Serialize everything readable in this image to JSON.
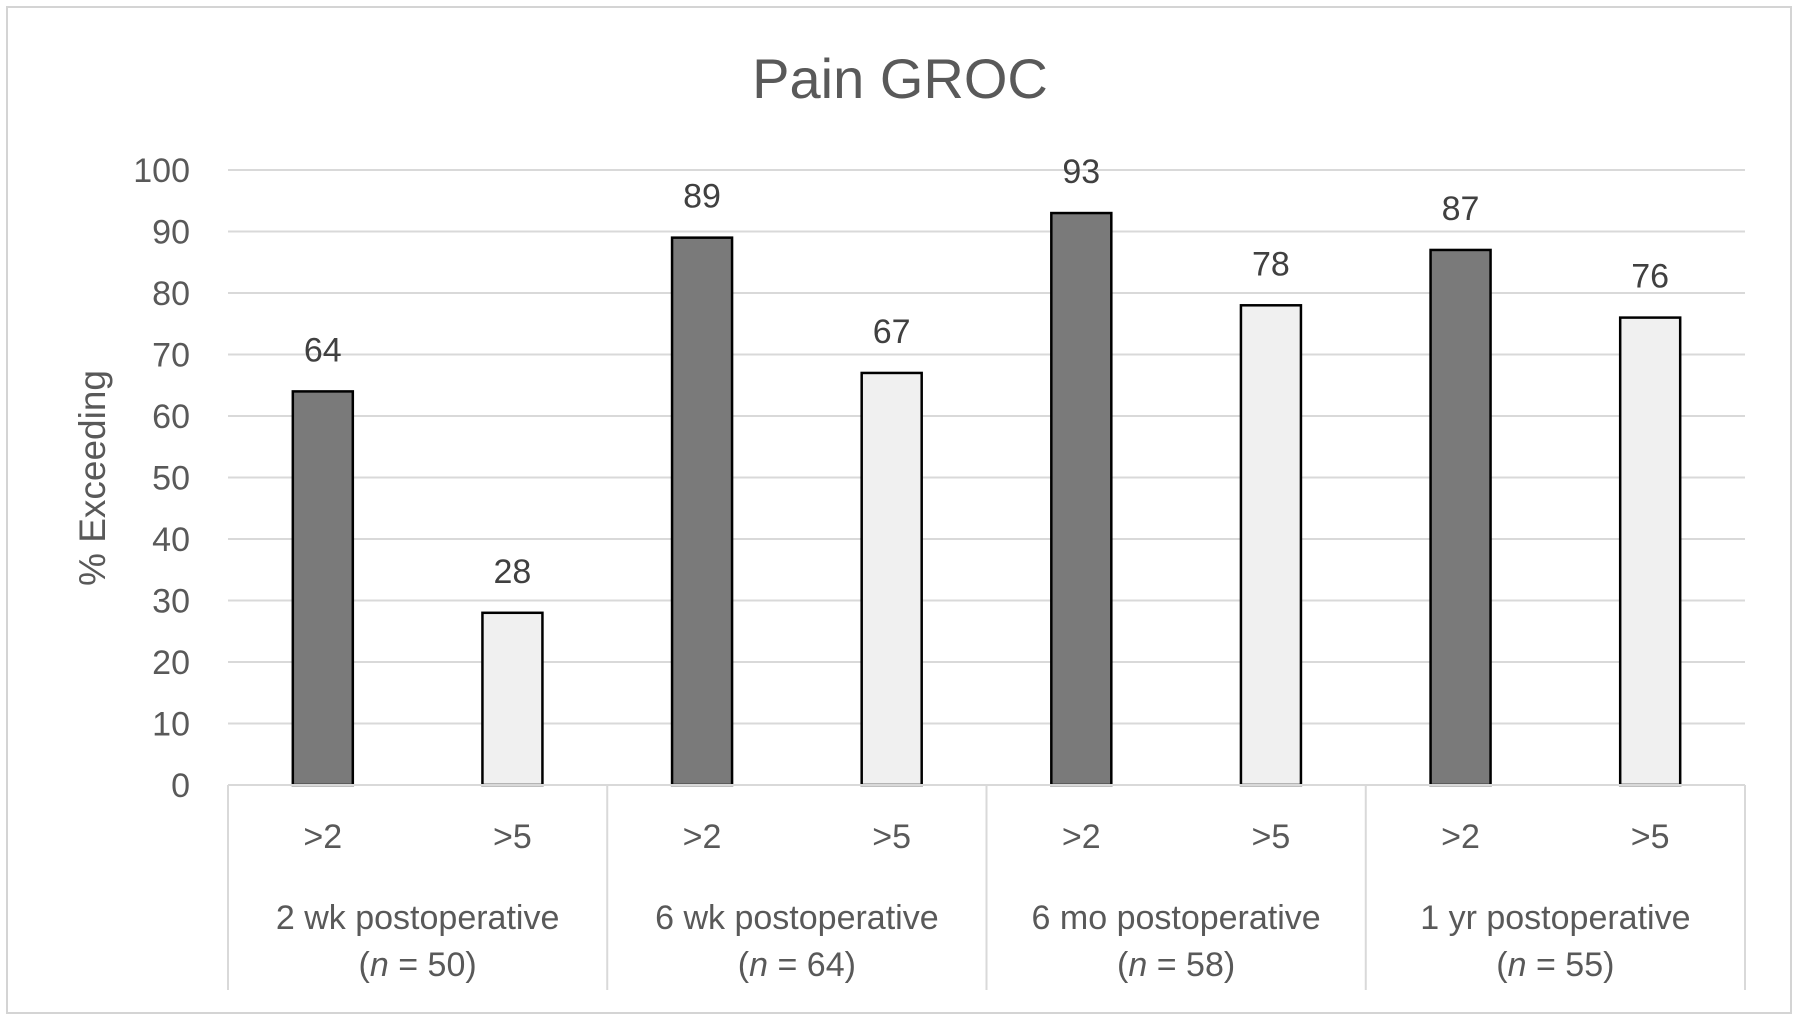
{
  "chart_data": {
    "type": "bar",
    "title": "Pain GROC",
    "ylabel": "% Exceeding",
    "xlabel": "",
    "ylim": [
      0,
      100
    ],
    "yticks": [
      0,
      10,
      20,
      30,
      40,
      50,
      60,
      70,
      80,
      90,
      100
    ],
    "grid": true,
    "groups": [
      {
        "name": "2 wk postoperative",
        "n_label": "n",
        "n_rest": " = 50)",
        "categories": [
          ">2",
          ">5"
        ],
        "values": [
          64,
          28
        ]
      },
      {
        "name": "6 wk postoperative",
        "n_label": "n",
        "n_rest": " = 64)",
        "categories": [
          ">2",
          ">5"
        ],
        "values": [
          89,
          67
        ]
      },
      {
        "name": "6 mo postoperative",
        "n_label": "n",
        "n_rest": " = 58)",
        "categories": [
          ">2",
          ">5"
        ],
        "values": [
          93,
          78
        ]
      },
      {
        "name": "1 yr postoperative",
        "n_label": "n",
        "n_rest": " = 55)",
        "categories": [
          ">2",
          ">5"
        ],
        "values": [
          87,
          76
        ]
      }
    ],
    "colors": {
      "gt2": "#7a7a7a",
      "gt5": "#f0f0f0",
      "bar_stroke": "#000000",
      "grid": "#d9d9d9"
    }
  }
}
